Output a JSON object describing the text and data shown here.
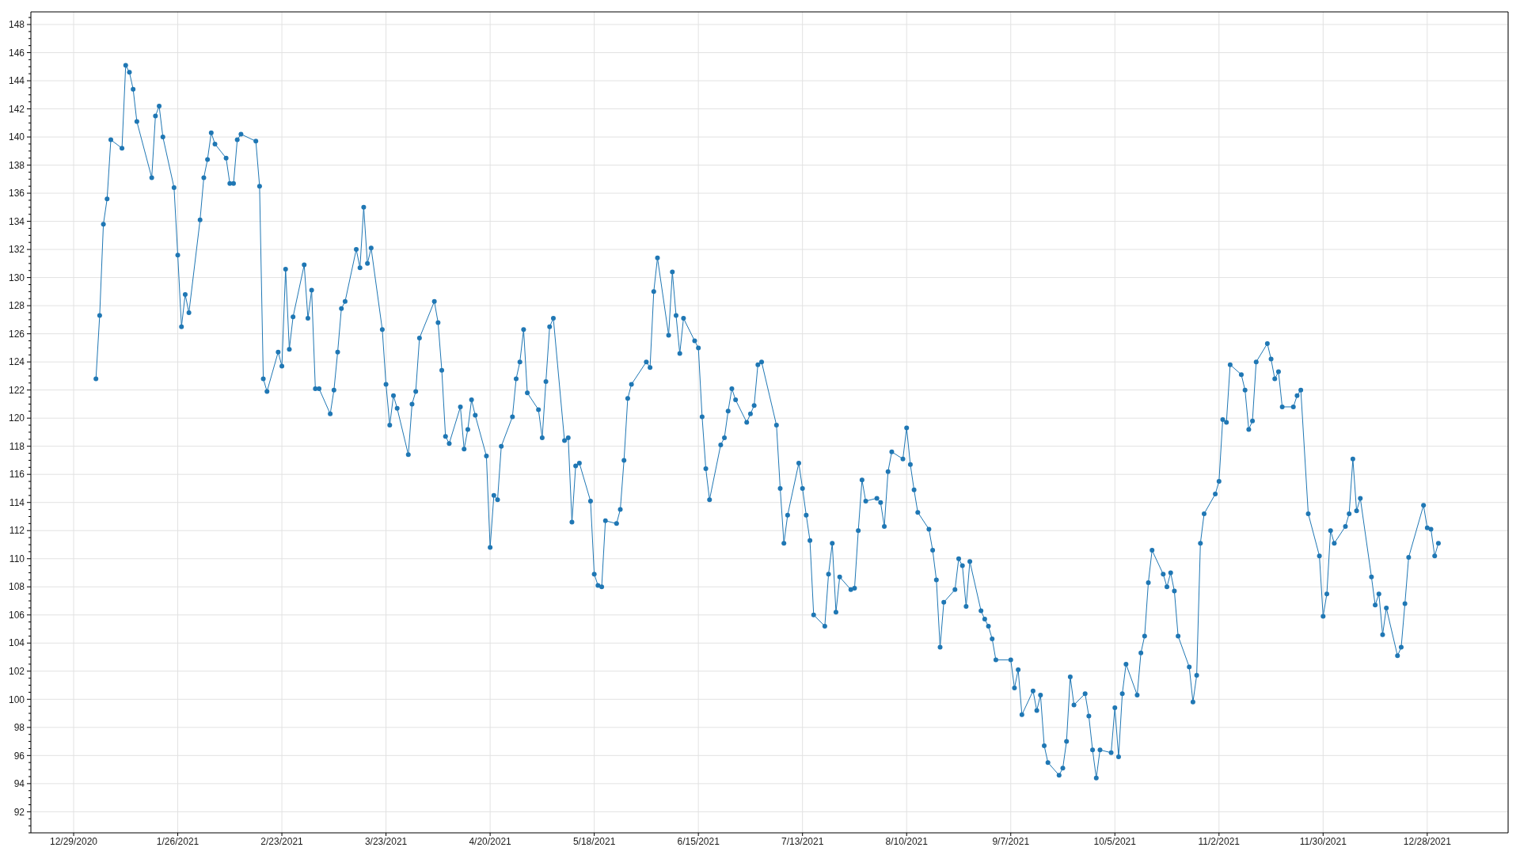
{
  "chart_data": {
    "type": "line",
    "color": "#1f77b4",
    "marker": "circle",
    "grid": true,
    "xlim": [
      "2020-12-17T12:00",
      "2022-01-18T18:00"
    ],
    "xticks": [
      {
        "value": "2020-12-29",
        "label": "12/29/2020"
      },
      {
        "value": "2021-01-26",
        "label": "1/26/2021"
      },
      {
        "value": "2021-02-23",
        "label": "2/23/2021"
      },
      {
        "value": "2021-03-23",
        "label": "3/23/2021"
      },
      {
        "value": "2021-04-20",
        "label": "4/20/2021"
      },
      {
        "value": "2021-05-18",
        "label": "5/18/2021"
      },
      {
        "value": "2021-06-15",
        "label": "6/15/2021"
      },
      {
        "value": "2021-07-13",
        "label": "7/13/2021"
      },
      {
        "value": "2021-08-10",
        "label": "8/10/2021"
      },
      {
        "value": "2021-09-07",
        "label": "9/7/2021"
      },
      {
        "value": "2021-10-05",
        "label": "10/5/2021"
      },
      {
        "value": "2021-11-02",
        "label": "11/2/2021"
      },
      {
        "value": "2021-11-30",
        "label": "11/30/2021"
      },
      {
        "value": "2021-12-28",
        "label": "12/28/2021"
      }
    ],
    "ylim": [
      90.5,
      148.9
    ],
    "yticks": [
      {
        "value": 90.5,
        "label": null
      },
      {
        "value": 91,
        "label": null
      },
      {
        "value": 91.5,
        "label": null
      },
      92,
      {
        "value": 92.5,
        "label": null
      },
      {
        "value": 93,
        "label": null
      },
      {
        "value": 93.5,
        "label": null
      },
      94,
      {
        "value": 94.5,
        "label": null
      },
      {
        "value": 95,
        "label": null
      },
      {
        "value": 95.5,
        "label": null
      },
      96,
      {
        "value": 96.5,
        "label": null
      },
      {
        "value": 97,
        "label": null
      },
      {
        "value": 97.5,
        "label": null
      },
      98,
      {
        "value": 98.5,
        "label": null
      },
      {
        "value": 99,
        "label": null
      },
      {
        "value": 99.5,
        "label": null
      },
      100,
      {
        "value": 100.5,
        "label": null
      },
      {
        "value": 101,
        "label": null
      },
      {
        "value": 101.5,
        "label": null
      },
      102,
      {
        "value": 102.5,
        "label": null
      },
      {
        "value": 103,
        "label": null
      },
      {
        "value": 103.5,
        "label": null
      },
      104,
      {
        "value": 104.5,
        "label": null
      },
      {
        "value": 105,
        "label": null
      },
      {
        "value": 105.5,
        "label": null
      },
      106,
      {
        "value": 106.5,
        "label": null
      },
      {
        "value": 107,
        "label": null
      },
      {
        "value": 107.5,
        "label": null
      },
      108,
      {
        "value": 108.5,
        "label": null
      },
      {
        "value": 109,
        "label": null
      },
      {
        "value": 109.5,
        "label": null
      },
      110,
      {
        "value": 110.5,
        "label": null
      },
      {
        "value": 111,
        "label": null
      },
      {
        "value": 111.5,
        "label": null
      },
      112,
      {
        "value": 112.5,
        "label": null
      },
      {
        "value": 113,
        "label": null
      },
      {
        "value": 113.5,
        "label": null
      },
      114,
      {
        "value": 114.5,
        "label": null
      },
      {
        "value": 115,
        "label": null
      },
      {
        "value": 115.5,
        "label": null
      },
      116,
      {
        "value": 116.5,
        "label": null
      },
      {
        "value": 117,
        "label": null
      },
      {
        "value": 117.5,
        "label": null
      },
      118,
      {
        "value": 118.5,
        "label": null
      },
      {
        "value": 119,
        "label": null
      },
      {
        "value": 119.5,
        "label": null
      },
      120,
      {
        "value": 120.5,
        "label": null
      },
      {
        "value": 121,
        "label": null
      },
      {
        "value": 121.5,
        "label": null
      },
      122,
      {
        "value": 122.5,
        "label": null
      },
      {
        "value": 123,
        "label": null
      },
      {
        "value": 123.5,
        "label": null
      },
      124,
      {
        "value": 124.5,
        "label": null
      },
      {
        "value": 125,
        "label": null
      },
      {
        "value": 125.5,
        "label": null
      },
      126,
      {
        "value": 126.5,
        "label": null
      },
      {
        "value": 127,
        "label": null
      },
      {
        "value": 127.5,
        "label": null
      },
      128,
      {
        "value": 128.5,
        "label": null
      },
      {
        "value": 129,
        "label": null
      },
      {
        "value": 129.5,
        "label": null
      },
      130,
      {
        "value": 130.5,
        "label": null
      },
      {
        "value": 131,
        "label": null
      },
      {
        "value": 131.5,
        "label": null
      },
      132,
      {
        "value": 132.5,
        "label": null
      },
      {
        "value": 133,
        "label": null
      },
      {
        "value": 133.5,
        "label": null
      },
      134,
      {
        "value": 134.5,
        "label": null
      },
      {
        "value": 135,
        "label": null
      },
      {
        "value": 135.5,
        "label": null
      },
      136,
      {
        "value": 136.5,
        "label": null
      },
      {
        "value": 137,
        "label": null
      },
      {
        "value": 137.5,
        "label": null
      },
      138,
      {
        "value": 138.5,
        "label": null
      },
      {
        "value": 139,
        "label": null
      },
      {
        "value": 139.5,
        "label": null
      },
      140,
      {
        "value": 140.5,
        "label": null
      },
      {
        "value": 141,
        "label": null
      },
      {
        "value": 141.5,
        "label": null
      },
      142,
      {
        "value": 142.5,
        "label": null
      },
      {
        "value": 143,
        "label": null
      },
      {
        "value": 143.5,
        "label": null
      },
      144,
      {
        "value": 144.5,
        "label": null
      },
      {
        "value": 145,
        "label": null
      },
      {
        "value": 145.5,
        "label": null
      },
      146,
      {
        "value": 146.5,
        "label": null
      },
      {
        "value": 147,
        "label": null
      },
      {
        "value": 147.5,
        "label": null
      },
      148,
      {
        "value": 148.5,
        "label": null
      }
    ],
    "x": [
      "2021-01-04",
      "2021-01-05",
      "2021-01-06",
      "2021-01-07",
      "2021-01-08",
      "2021-01-11",
      "2021-01-12",
      "2021-01-13",
      "2021-01-14",
      "2021-01-15",
      "2021-01-19",
      "2021-01-20",
      "2021-01-21",
      "2021-01-22",
      "2021-01-25",
      "2021-01-26",
      "2021-01-27",
      "2021-01-28",
      "2021-01-29",
      "2021-02-01",
      "2021-02-02",
      "2021-02-03",
      "2021-02-04",
      "2021-02-05",
      "2021-02-08",
      "2021-02-09",
      "2021-02-10",
      "2021-02-11",
      "2021-02-12",
      "2021-02-16",
      "2021-02-17",
      "2021-02-18",
      "2021-02-19",
      "2021-02-22",
      "2021-02-23",
      "2021-02-24",
      "2021-02-25",
      "2021-02-26",
      "2021-03-01",
      "2021-03-02",
      "2021-03-03",
      "2021-03-04",
      "2021-03-05",
      "2021-03-08",
      "2021-03-09",
      "2021-03-10",
      "2021-03-11",
      "2021-03-12",
      "2021-03-15",
      "2021-03-16",
      "2021-03-17",
      "2021-03-18",
      "2021-03-19",
      "2021-03-22",
      "2021-03-23",
      "2021-03-24",
      "2021-03-25",
      "2021-03-26",
      "2021-03-29",
      "2021-03-30",
      "2021-03-31",
      "2021-04-01",
      "2021-04-05",
      "2021-04-06",
      "2021-04-07",
      "2021-04-08",
      "2021-04-09",
      "2021-04-12",
      "2021-04-13",
      "2021-04-14",
      "2021-04-15",
      "2021-04-16",
      "2021-04-19",
      "2021-04-20",
      "2021-04-21",
      "2021-04-22",
      "2021-04-23",
      "2021-04-26",
      "2021-04-27",
      "2021-04-28",
      "2021-04-29",
      "2021-04-30",
      "2021-05-03",
      "2021-05-04",
      "2021-05-05",
      "2021-05-06",
      "2021-05-07",
      "2021-05-10",
      "2021-05-11",
      "2021-05-12",
      "2021-05-13",
      "2021-05-14",
      "2021-05-17",
      "2021-05-18",
      "2021-05-19",
      "2021-05-20",
      "2021-05-21",
      "2021-05-24",
      "2021-05-25",
      "2021-05-26",
      "2021-05-27",
      "2021-05-28",
      "2021-06-01",
      "2021-06-02",
      "2021-06-03",
      "2021-06-04",
      "2021-06-07",
      "2021-06-08",
      "2021-06-09",
      "2021-06-10",
      "2021-06-11",
      "2021-06-14",
      "2021-06-15",
      "2021-06-16",
      "2021-06-17",
      "2021-06-18",
      "2021-06-21",
      "2021-06-22",
      "2021-06-23",
      "2021-06-24",
      "2021-06-25",
      "2021-06-28",
      "2021-06-29",
      "2021-06-30",
      "2021-07-01",
      "2021-07-02",
      "2021-07-06",
      "2021-07-07",
      "2021-07-08",
      "2021-07-09",
      "2021-07-12",
      "2021-07-13",
      "2021-07-14",
      "2021-07-15",
      "2021-07-16",
      "2021-07-19",
      "2021-07-20",
      "2021-07-21",
      "2021-07-22",
      "2021-07-23",
      "2021-07-26",
      "2021-07-27",
      "2021-07-28",
      "2021-07-29",
      "2021-07-30",
      "2021-08-02",
      "2021-08-03",
      "2021-08-04",
      "2021-08-05",
      "2021-08-06",
      "2021-08-09",
      "2021-08-10",
      "2021-08-11",
      "2021-08-12",
      "2021-08-13",
      "2021-08-16",
      "2021-08-17",
      "2021-08-18",
      "2021-08-19",
      "2021-08-20",
      "2021-08-23",
      "2021-08-24",
      "2021-08-25",
      "2021-08-26",
      "2021-08-27",
      "2021-08-30",
      "2021-08-31",
      "2021-09-01",
      "2021-09-02",
      "2021-09-03",
      "2021-09-07",
      "2021-09-08",
      "2021-09-09",
      "2021-09-10",
      "2021-09-13",
      "2021-09-14",
      "2021-09-15",
      "2021-09-16",
      "2021-09-17",
      "2021-09-20",
      "2021-09-21",
      "2021-09-22",
      "2021-09-23",
      "2021-09-24",
      "2021-09-27",
      "2021-09-28",
      "2021-09-29",
      "2021-09-30",
      "2021-10-01",
      "2021-10-04",
      "2021-10-05",
      "2021-10-06",
      "2021-10-07",
      "2021-10-08",
      "2021-10-11",
      "2021-10-12",
      "2021-10-13",
      "2021-10-14",
      "2021-10-15",
      "2021-10-18",
      "2021-10-19",
      "2021-10-20",
      "2021-10-21",
      "2021-10-22",
      "2021-10-25",
      "2021-10-26",
      "2021-10-27",
      "2021-10-28",
      "2021-10-29",
      "2021-11-01",
      "2021-11-02",
      "2021-11-03",
      "2021-11-04",
      "2021-11-05",
      "2021-11-08",
      "2021-11-09",
      "2021-11-10",
      "2021-11-11",
      "2021-11-12",
      "2021-11-15",
      "2021-11-16",
      "2021-11-17",
      "2021-11-18",
      "2021-11-19",
      "2021-11-22",
      "2021-11-23",
      "2021-11-24",
      "2021-11-26",
      "2021-11-29",
      "2021-11-30",
      "2021-12-01",
      "2021-12-02",
      "2021-12-03",
      "2021-12-06",
      "2021-12-07",
      "2021-12-08",
      "2021-12-09",
      "2021-12-10",
      "2021-12-13",
      "2021-12-14",
      "2021-12-15",
      "2021-12-16",
      "2021-12-17",
      "2021-12-20",
      "2021-12-21",
      "2021-12-22",
      "2021-12-23",
      "2021-12-27",
      "2021-12-28",
      "2021-12-29",
      "2021-12-30",
      "2021-12-31"
    ],
    "values": [
      122.8,
      127.3,
      133.8,
      135.6,
      139.8,
      139.2,
      145.1,
      144.6,
      143.4,
      141.1,
      137.1,
      141.5,
      142.2,
      140.0,
      136.4,
      131.6,
      126.5,
      128.8,
      127.5,
      134.1,
      137.1,
      138.4,
      140.3,
      139.5,
      138.5,
      136.7,
      136.7,
      139.8,
      140.2,
      139.7,
      136.5,
      122.8,
      121.9,
      124.7,
      123.7,
      130.6,
      124.9,
      127.2,
      130.9,
      127.1,
      129.1,
      122.1,
      122.1,
      120.3,
      122.0,
      124.7,
      127.8,
      128.3,
      132.0,
      130.7,
      135.0,
      131.0,
      132.1,
      126.3,
      122.4,
      119.5,
      121.6,
      120.7,
      117.4,
      121.0,
      121.9,
      125.7,
      128.3,
      126.8,
      123.4,
      118.7,
      118.2,
      120.8,
      117.8,
      119.2,
      121.3,
      120.2,
      117.3,
      110.8,
      114.5,
      114.2,
      118.0,
      120.1,
      122.8,
      124.0,
      126.3,
      121.8,
      120.6,
      118.6,
      122.6,
      126.5,
      127.1,
      118.4,
      118.6,
      112.6,
      116.6,
      116.8,
      114.1,
      108.9,
      108.1,
      108.0,
      112.7,
      112.5,
      113.5,
      117.0,
      121.4,
      122.4,
      124.0,
      123.6,
      129.0,
      131.4,
      125.9,
      130.4,
      127.3,
      124.6,
      127.1,
      125.5,
      125.0,
      120.1,
      116.4,
      114.2,
      118.1,
      118.6,
      120.5,
      122.1,
      121.3,
      119.7,
      120.3,
      120.9,
      123.8,
      124.0,
      119.5,
      115.0,
      111.1,
      113.1,
      116.8,
      115.0,
      113.1,
      111.3,
      106.0,
      105.2,
      108.9,
      111.1,
      106.2,
      108.7,
      107.8,
      107.9,
      112.0,
      115.6,
      114.1,
      114.3,
      114.0,
      112.3,
      116.2,
      117.6,
      117.1,
      119.3,
      116.7,
      114.9,
      113.3,
      112.1,
      110.6,
      108.5,
      103.7,
      106.9,
      107.8,
      110.0,
      109.5,
      106.6,
      109.8,
      106.3,
      105.7,
      105.2,
      104.3,
      102.8,
      102.8,
      100.8,
      102.1,
      98.9,
      100.6,
      99.2,
      100.3,
      96.7,
      95.5,
      94.6,
      95.1,
      97.0,
      101.6,
      99.6,
      100.4,
      98.8,
      96.4,
      94.4,
      96.4,
      96.2,
      99.4,
      95.9,
      100.4,
      102.5,
      100.3,
      103.3,
      104.5,
      108.3,
      110.6,
      108.9,
      108.0,
      109.0,
      107.7,
      104.5,
      102.3,
      99.8,
      101.7,
      111.1,
      113.2,
      114.6,
      115.5,
      119.9,
      119.7,
      123.8,
      123.1,
      122.0,
      119.2,
      119.8,
      124.0,
      125.3,
      124.2,
      122.8,
      123.3,
      120.8,
      120.8,
      121.6,
      122.0,
      113.2,
      110.2,
      105.9,
      107.5,
      112.0,
      111.1,
      112.3,
      113.2,
      117.1,
      113.4,
      114.3,
      108.7,
      106.7,
      107.5,
      104.6,
      106.5,
      103.1,
      103.7,
      106.8,
      110.1,
      113.8,
      112.2,
      112.1,
      110.2,
      111.1
    ]
  }
}
